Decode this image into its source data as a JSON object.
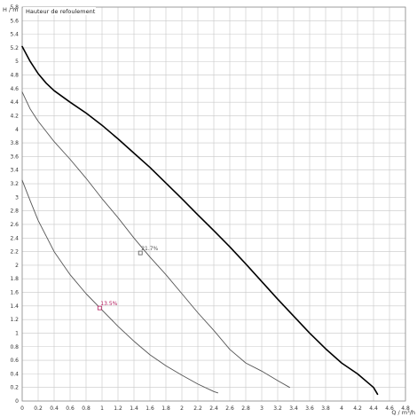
{
  "chart_data": {
    "type": "line",
    "title": "Hauteur de refoulement",
    "ylabel": "H / m",
    "xlabel": "Q / m³/h",
    "xlim": [
      0,
      4.8
    ],
    "ylim": [
      0,
      5.8
    ],
    "grid": true,
    "x_ticks": [
      "0",
      "0.2",
      "0.4",
      "0.6",
      "0.8",
      "1",
      "1.2",
      "1.4",
      "1.6",
      "1.8",
      "2",
      "2.2",
      "2.4",
      "2.6",
      "2.8",
      "3",
      "3.2",
      "3.4",
      "3.6",
      "3.8",
      "4",
      "4.2",
      "4.4",
      "4.6",
      "4.8"
    ],
    "y_ticks": [
      "0",
      "0.2",
      "0.4",
      "0.6",
      "0.8",
      "1",
      "1.2",
      "1.4",
      "1.6",
      "1.8",
      "2",
      "2.2",
      "2.4",
      "2.6",
      "2.8",
      "3",
      "3.2",
      "3.4",
      "3.6",
      "3.8",
      "4",
      "4.2",
      "4.4",
      "4.6",
      "4.8",
      "5",
      "5.2",
      "5.4",
      "5.6",
      "5.8"
    ],
    "series": [
      {
        "color": "#000000",
        "width": 1.6,
        "x": [
          0,
          0.1,
          0.2,
          0.3,
          0.4,
          0.6,
          0.8,
          1.0,
          1.2,
          1.4,
          1.6,
          1.8,
          2.0,
          2.2,
          2.4,
          2.6,
          2.8,
          3.0,
          3.2,
          3.4,
          3.6,
          3.8,
          4.0,
          4.2,
          4.4,
          4.45
        ],
        "y": [
          5.22,
          5.0,
          4.82,
          4.68,
          4.57,
          4.4,
          4.24,
          4.06,
          3.86,
          3.65,
          3.44,
          3.21,
          2.98,
          2.74,
          2.51,
          2.27,
          2.02,
          1.76,
          1.5,
          1.25,
          1.0,
          0.77,
          0.56,
          0.4,
          0.2,
          0.1
        ]
      },
      {
        "color": "#555555",
        "width": 0.9,
        "x": [
          0,
          0.1,
          0.2,
          0.4,
          0.6,
          0.8,
          1.0,
          1.2,
          1.4,
          1.6,
          1.8,
          2.0,
          2.2,
          2.4,
          2.6,
          2.8,
          3.0,
          3.2,
          3.35
        ],
        "y": [
          4.55,
          4.3,
          4.12,
          3.82,
          3.56,
          3.28,
          2.98,
          2.7,
          2.4,
          2.12,
          1.86,
          1.58,
          1.3,
          1.04,
          0.76,
          0.56,
          0.44,
          0.3,
          0.2
        ]
      },
      {
        "color": "#555555",
        "width": 0.9,
        "x": [
          0,
          0.1,
          0.2,
          0.4,
          0.6,
          0.8,
          1.0,
          1.2,
          1.4,
          1.6,
          1.8,
          2.0,
          2.2,
          2.4,
          2.45
        ],
        "y": [
          3.25,
          2.95,
          2.66,
          2.2,
          1.86,
          1.58,
          1.34,
          1.1,
          0.88,
          0.68,
          0.52,
          0.38,
          0.25,
          0.14,
          0.12
        ]
      }
    ],
    "annotations": [
      {
        "text": "21.7%",
        "x": 1.48,
        "y": 2.18,
        "color": "#555555"
      },
      {
        "text": "13.5%",
        "x": 0.97,
        "y": 1.37,
        "color": "#b0185a"
      }
    ]
  }
}
